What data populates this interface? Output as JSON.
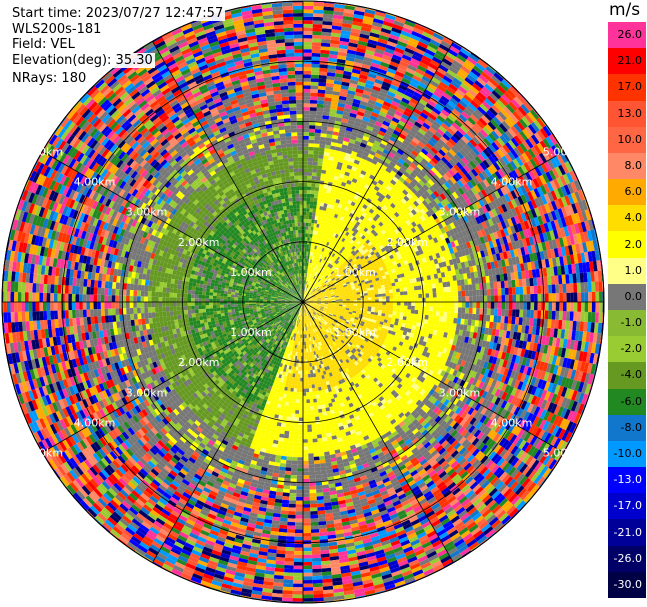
{
  "header": {
    "start_time": "Start time: 2023/07/27 12:47:57",
    "site": "WLS200s-181",
    "field": "Field: VEL",
    "elevation": "Elevation(deg): 35.30",
    "nrays": "NRays: 180"
  },
  "colorbar": {
    "unit": "m/s",
    "levels": [
      {
        "label": "26.0",
        "color": "#ff3399"
      },
      {
        "label": "21.0",
        "color": "#ff0000"
      },
      {
        "label": "17.0",
        "color": "#ff3300"
      },
      {
        "label": "13.0",
        "color": "#ff5533"
      },
      {
        "label": "10.0",
        "color": "#ff6644"
      },
      {
        "label": "8.0",
        "color": "#ff8866"
      },
      {
        "label": "6.0",
        "color": "#ffaa00"
      },
      {
        "label": "4.0",
        "color": "#ffdd00"
      },
      {
        "label": "2.0",
        "color": "#ffff00"
      },
      {
        "label": "1.0",
        "color": "#ffff88"
      },
      {
        "label": "0.0",
        "color": "#777777"
      },
      {
        "label": "-1.0",
        "color": "#88bb33"
      },
      {
        "label": "-2.0",
        "color": "#99cc33"
      },
      {
        "label": "-4.0",
        "color": "#669922"
      },
      {
        "label": "-6.0",
        "color": "#228822"
      },
      {
        "label": "-8.0",
        "color": "#1177cc"
      },
      {
        "label": "-10.0",
        "color": "#0099ff"
      },
      {
        "label": "-13.0",
        "color": "#0000ff"
      },
      {
        "label": "-17.0",
        "color": "#0000cc"
      },
      {
        "label": "-21.0",
        "color": "#000099"
      },
      {
        "label": "-26.0",
        "color": "#000066"
      },
      {
        "label": "-30.0",
        "color": "#000044"
      }
    ]
  },
  "rings": [
    {
      "km": 1,
      "label": "1.00km"
    },
    {
      "km": 2,
      "label": "2.00km"
    },
    {
      "km": 3,
      "label": "3.00km"
    },
    {
      "km": 4,
      "label": "4.00km"
    },
    {
      "km": 5,
      "label": "5.00km"
    }
  ],
  "spokes_deg": [
    0,
    30,
    60,
    90,
    120,
    150,
    180,
    210,
    240,
    270,
    300,
    330
  ],
  "max_range_km": 5.0
}
